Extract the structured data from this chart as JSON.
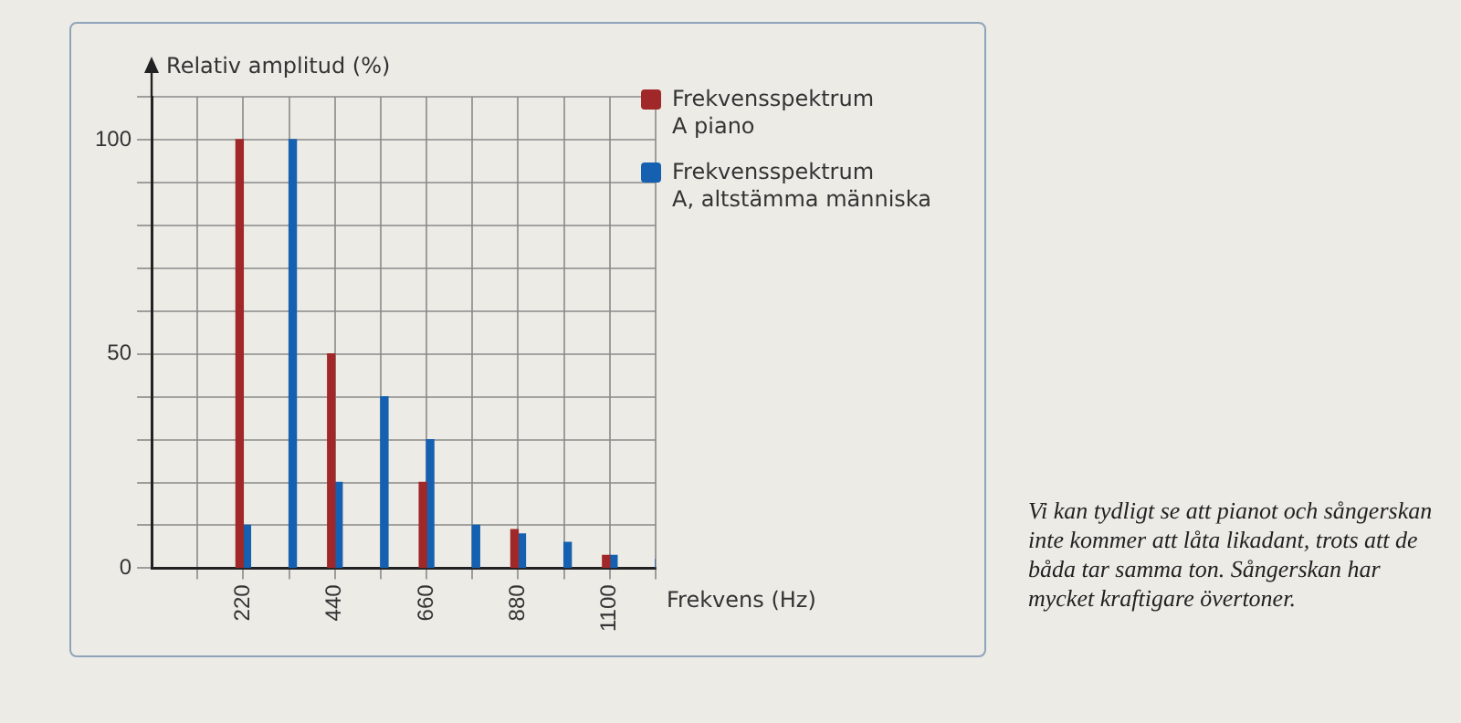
{
  "chart_data": {
    "type": "bar",
    "ylabel": "Relativ amplitud (%)",
    "xlabel": "Frekvens (Hz)",
    "xlim": [
      0,
      1210
    ],
    "xticks": [
      {
        "value": 110,
        "label": null
      },
      220,
      {
        "value": 330,
        "label": null
      },
      440,
      {
        "value": 550,
        "label": null
      },
      660,
      {
        "value": 770,
        "label": null
      },
      880,
      {
        "value": 990,
        "label": null
      },
      1100,
      {
        "value": 1210,
        "label": null
      }
    ],
    "ylim": [
      0,
      110
    ],
    "yticks": [
      0,
      {
        "value": 10,
        "label": null
      },
      {
        "value": 20,
        "label": null
      },
      {
        "value": 30,
        "label": null
      },
      {
        "value": 40,
        "label": null
      },
      50,
      {
        "value": 60,
        "label": null
      },
      {
        "value": 70,
        "label": null
      },
      {
        "value": 80,
        "label": null
      },
      {
        "value": 90,
        "label": null
      },
      100,
      {
        "value": 110,
        "label": null
      }
    ],
    "series": [
      {
        "name": "Frekvensspektrum\nA piano",
        "color": "#a02828",
        "x": [
          220,
          440,
          660,
          880,
          1100
        ],
        "values": [
          100,
          50,
          20,
          9,
          3
        ]
      },
      {
        "name": "Frekvensspektrum\nA, altstämma människa",
        "color": "#1560b0",
        "x": [
          220,
          330,
          440,
          550,
          660,
          770,
          880,
          990,
          1100,
          1210
        ],
        "values": [
          10,
          100,
          20,
          40,
          30,
          10,
          8,
          6,
          3,
          2
        ]
      }
    ],
    "grid": true,
    "legend": "right",
    "annotations": [
      "Vi kan tydligt se att pianot och sångerskan inte kommer att låta likadant, trots att de båda tar samma ton. Sångerskan har mycket kraftigare övertoner."
    ]
  }
}
